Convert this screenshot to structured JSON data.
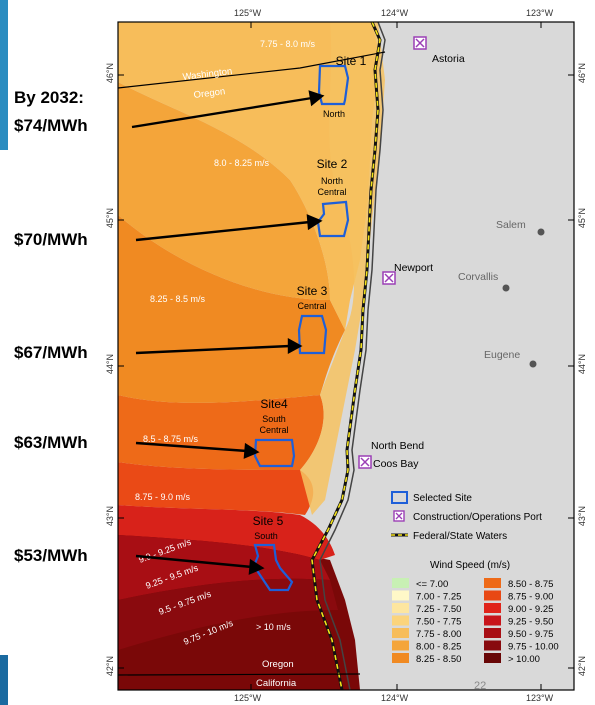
{
  "prices": {
    "intro": "By 2032:",
    "p1": "$74/MWh",
    "p2": "$70/MWh",
    "p3": "$67/MWh",
    "p4": "$63/MWh",
    "p5": "$53/MWh"
  },
  "axis": {
    "lon_125": "125°W",
    "lon_124": "124°W",
    "lon_123": "123°W",
    "lat_46": "46°N",
    "lat_45": "45°N",
    "lat_44": "44°N",
    "lat_43": "43°N",
    "lat_42": "42°N"
  },
  "sites": [
    {
      "name": "Site 1",
      "region": "North"
    },
    {
      "name": "Site 2",
      "region": "North Central"
    },
    {
      "name": "Site 3",
      "region": "Central"
    },
    {
      "name": "Site4",
      "region": "South Central"
    },
    {
      "name": "Site 5",
      "region": "South"
    }
  ],
  "wind_zone_labels": {
    "z1": "7.75 - 8.0 m/s",
    "z2": "8.0 - 8.25 m/s",
    "z3": "8.25 - 8.5 m/s",
    "z4": "8.5 - 8.75 m/s",
    "z5": "8.75 - 9.0 m/s",
    "z6": "9.0 - 9.25 m/s",
    "z7": "9.25 - 9.5 m/s",
    "z8": "9.5 - 9.75 m/s",
    "z9": "9.75 - 10 m/s",
    "z10": "> 10 m/s"
  },
  "places": {
    "astoria": "Astoria",
    "newport": "Newport",
    "salem": "Salem",
    "corvallis": "Corvallis",
    "eugene": "Eugene",
    "north_bend": "North Bend",
    "coos_bay": "Coos Bay",
    "washington": "Washington",
    "oregon_n": "Oregon",
    "oregon_s": "Oregon",
    "california": "California"
  },
  "legend": {
    "selected_site": "Selected Site",
    "port": "Construction/Operations Port",
    "waters": "Federal/State Waters",
    "wind_title": "Wind Speed (m/s)",
    "left": [
      "<= 7.00",
      "7.00 - 7.25",
      "7.25 - 7.50",
      "7.50 - 7.75",
      "7.75 - 8.00",
      "8.00 - 8.25",
      "8.25 - 8.50"
    ],
    "right": [
      "8.50 - 8.75",
      "8.75 - 9.00",
      "9.00 - 9.25",
      "9.25 - 9.50",
      "9.50 - 9.75",
      "9.75 - 10.00",
      "> 10.00"
    ],
    "colors_left": [
      "#c8f0b4",
      "#fff8c8",
      "#fde6a0",
      "#fbd47c",
      "#f7bd5a",
      "#f4a53a",
      "#f08a22"
    ],
    "colors_right": [
      "#ee6a18",
      "#e84814",
      "#e0241a",
      "#c8141a",
      "#a80e14",
      "#880a0e",
      "#680606"
    ]
  },
  "page_number": "22",
  "colors": {
    "site_outline": "#1e5fd8",
    "port": "#9b3fb5",
    "land": "#d9d9d9"
  }
}
